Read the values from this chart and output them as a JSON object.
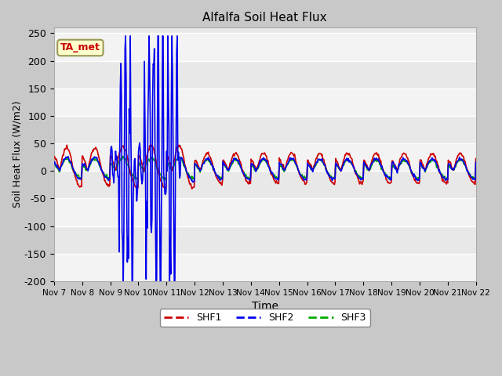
{
  "title": "Alfalfa Soil Heat Flux",
  "ylabel": "Soil Heat Flux (W/m2)",
  "xlabel": "Time",
  "ylim": [
    -200,
    260
  ],
  "yticks": [
    -200,
    -150,
    -100,
    -50,
    0,
    50,
    100,
    150,
    200,
    250
  ],
  "shf1_color": "#cc0000",
  "shf2_color": "#0000ee",
  "shf3_color": "#00aa00",
  "annotation_text": "TA_met",
  "legend_labels": [
    "SHF1",
    "SHF2",
    "SHF3"
  ],
  "xtick_labels": [
    "Nov 7",
    "Nov 8",
    "Nov 9",
    "Nov 10",
    "Nov 11",
    "Nov 12",
    "Nov 13",
    "Nov 14",
    "Nov 15",
    "Nov 16",
    "Nov 17",
    "Nov 18",
    "Nov 19",
    "Nov 20",
    "Nov 21",
    "Nov 22"
  ],
  "n_days": 15,
  "pts_per_day": 48
}
